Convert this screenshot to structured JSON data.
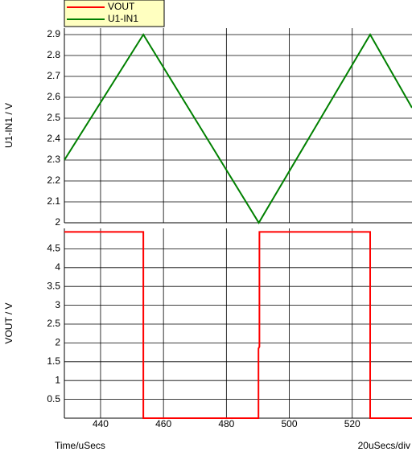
{
  "chart_data": [
    {
      "type": "line",
      "y_label": "U1-IN1 / V",
      "x": [
        428.5,
        453.6,
        490.3,
        525.7,
        539
      ],
      "series": [
        {
          "name": "U1-IN1",
          "color": "#008000",
          "values": [
            2.3,
            2.9,
            2.0,
            2.9,
            2.55
          ]
        }
      ],
      "xlim": [
        428.5,
        539
      ],
      "xticks": [
        440,
        460,
        480,
        500,
        520
      ],
      "ylim": [
        2,
        2.9
      ],
      "yticks": [
        2,
        2.1,
        2.2,
        2.3,
        2.4,
        2.5,
        2.6,
        2.7,
        2.8,
        2.9
      ],
      "grid": true
    },
    {
      "type": "line",
      "y_label": "VOUT / V",
      "x_label": "Time/uSecs",
      "x_scale_label": "20uSecs/div",
      "x": [
        428.5,
        453.6,
        453.6,
        490.2,
        490.2,
        490.5,
        490.5,
        525.7,
        525.7,
        539
      ],
      "series": [
        {
          "name": "VOUT",
          "color": "#ff0000",
          "values": [
            4.95,
            4.95,
            0,
            0,
            1.85,
            1.9,
            4.95,
            4.95,
            0,
            0
          ]
        }
      ],
      "xlim": [
        428.5,
        539
      ],
      "xticks": [
        440,
        460,
        480,
        500,
        520
      ],
      "ylim": [
        0,
        5
      ],
      "yticks": [
        0.5,
        1,
        1.5,
        2,
        2.5,
        3,
        3.5,
        4,
        4.5
      ],
      "grid": true
    }
  ]
}
